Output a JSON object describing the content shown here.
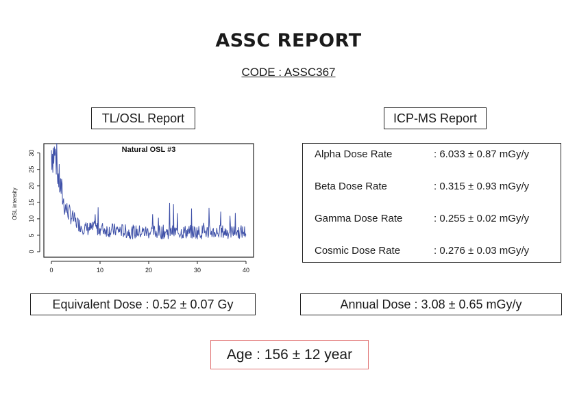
{
  "header": {
    "title": "ASSC REPORT",
    "code": "CODE : ASSC367"
  },
  "tl_osl": {
    "header": "TL/OSL Report",
    "equivalent_dose": "Equivalent Dose : 0.52 ± 0.07 Gy"
  },
  "icp_ms": {
    "header": "ICP-MS Report",
    "rates": [
      {
        "label": "Alpha Dose Rate",
        "value": ": 6.033 ± 0.87 mGy/y"
      },
      {
        "label": "Beta Dose Rate",
        "value": ": 0.315 ± 0.93 mGy/y"
      },
      {
        "label": "Gamma Dose Rate",
        "value": ": 0.255 ± 0.02 mGy/y"
      },
      {
        "label": "Cosmic Dose Rate",
        "value": ": 0.276 ± 0.03 mGy/y"
      }
    ],
    "annual_dose": "Annual Dose : 3.08 ± 0.65 mGy/y"
  },
  "age": "Age : 156 ± 12 year",
  "chart_data": {
    "type": "line",
    "title": "Natural OSL #3",
    "xlabel": "",
    "ylabel": "OSL intensity",
    "xlim": [
      0,
      40
    ],
    "ylim": [
      0,
      32
    ],
    "x_ticks": [
      "0",
      "10",
      "20",
      "30",
      "40"
    ],
    "y_ticks": [
      "0",
      "5",
      "10",
      "15",
      "20",
      "25",
      "30"
    ],
    "line_color": "#3f51a8",
    "series": [
      {
        "x": [
          0,
          0.5,
          1,
          1.5,
          2,
          2.5,
          3,
          3.5,
          4,
          4.5,
          5,
          6,
          7,
          8,
          9,
          10,
          12,
          14,
          16,
          18,
          20,
          22,
          24,
          26,
          28,
          30,
          32,
          34,
          36,
          38,
          40
        ],
        "values": [
          31,
          30,
          28,
          22,
          19,
          15,
          13,
          12,
          11,
          10,
          9,
          8,
          7,
          7,
          7,
          7,
          6.5,
          6.5,
          6,
          6,
          6,
          6,
          6,
          6,
          6,
          6,
          6,
          6,
          6,
          6,
          6
        ]
      }
    ]
  }
}
